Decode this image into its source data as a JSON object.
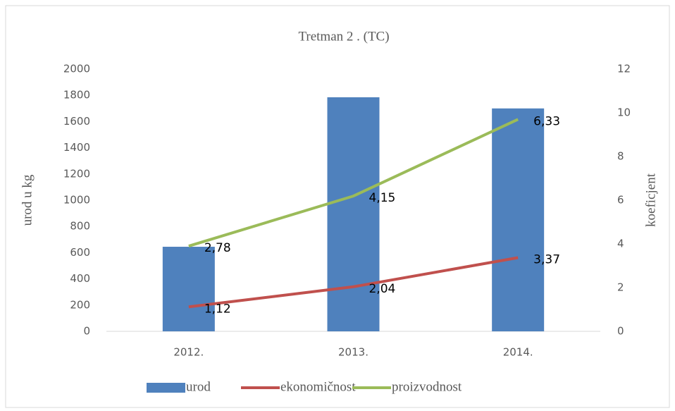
{
  "chart_data": {
    "type": "bar_line",
    "title": "Tretman 2 . (TC)",
    "ylabel": "urod u kg",
    "y2label": "koeficjent",
    "categories": [
      "2012.",
      "2013.",
      "2014."
    ],
    "series": [
      {
        "name": "urod",
        "type": "bar",
        "color": "#4f81bd",
        "values": [
          645,
          1785,
          1700
        ]
      },
      {
        "name": "ekonomičnost",
        "type": "line",
        "axis": "y2",
        "stacked": true,
        "color": "#c0504d",
        "values": [
          1.12,
          2.04,
          3.37
        ],
        "value_labels": [
          "1,12",
          "2,04",
          "3,37"
        ]
      },
      {
        "name": "proizvodnost",
        "type": "line",
        "axis": "y2",
        "stacked": true,
        "color": "#9bbb59",
        "values": [
          2.78,
          4.15,
          6.33
        ],
        "value_labels": [
          "2,78",
          "4,15",
          "6,33"
        ]
      }
    ],
    "ylim": [
      0,
      2000
    ],
    "yticks": [
      0,
      200,
      400,
      600,
      800,
      1000,
      1200,
      1400,
      1600,
      1800,
      2000
    ],
    "y2lim": [
      0,
      12
    ],
    "y2ticks": [
      0,
      2,
      4,
      6,
      8,
      10,
      12
    ],
    "grid": false,
    "legend": "bottom"
  }
}
